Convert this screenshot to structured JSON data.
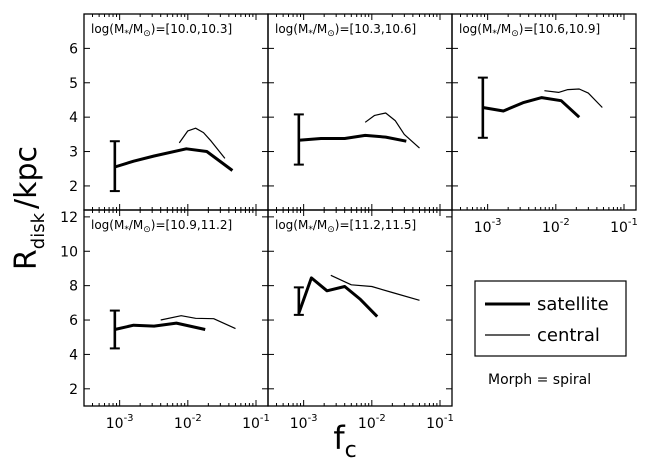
{
  "chart_data": {
    "type": "line",
    "xlabel_main": "f",
    "xlabel_sub": "c",
    "ylabel_main": "R",
    "ylabel_sub": "disk",
    "ylabel_unit": "/kpc",
    "note": "Morph = spiral",
    "xscale": "log",
    "xlim": [
      0.0003,
      0.15
    ],
    "xticks": [
      {
        "value": 0.001,
        "base": "10",
        "exp": "-3"
      },
      {
        "value": 0.01,
        "base": "10",
        "exp": "-2"
      },
      {
        "value": 0.1,
        "base": "10",
        "exp": "-1"
      }
    ],
    "top_row": {
      "ylim": [
        1.3,
        7.0
      ],
      "yticks": [
        2,
        3,
        4,
        5,
        6
      ]
    },
    "bottom_row": {
      "ylim": [
        1.0,
        12.4
      ],
      "yticks": [
        2,
        4,
        6,
        8,
        10,
        12
      ]
    },
    "legend": [
      {
        "name": "satellite",
        "style": "thick"
      },
      {
        "name": "central",
        "style": "thin"
      }
    ],
    "panels": [
      {
        "label": "log(M",
        "label_range": "=[10.0,10.3]",
        "row": 0,
        "col": 0,
        "errorbar": {
          "x": 0.00085,
          "low": 1.85,
          "high": 3.3
        },
        "satellite": {
          "x": [
            0.00085,
            0.0016,
            0.0032,
            0.0095,
            0.019,
            0.045
          ],
          "y": [
            2.55,
            2.72,
            2.87,
            3.08,
            3.0,
            2.45
          ]
        },
        "central": {
          "x": [
            0.0075,
            0.01,
            0.013,
            0.017,
            0.022,
            0.035
          ],
          "y": [
            3.25,
            3.6,
            3.68,
            3.55,
            3.3,
            2.8
          ]
        }
      },
      {
        "label": "log(M",
        "label_range": "=[10.3,10.6]",
        "row": 0,
        "col": 1,
        "errorbar": {
          "x": 0.00085,
          "low": 2.62,
          "high": 4.08
        },
        "satellite": {
          "x": [
            0.00085,
            0.0018,
            0.004,
            0.008,
            0.016,
            0.032
          ],
          "y": [
            3.33,
            3.38,
            3.38,
            3.47,
            3.42,
            3.3
          ]
        },
        "central": {
          "x": [
            0.008,
            0.011,
            0.016,
            0.022,
            0.03,
            0.05
          ],
          "y": [
            3.85,
            4.05,
            4.12,
            3.9,
            3.5,
            3.1
          ]
        }
      },
      {
        "label": "log(M",
        "label_range": "=[10.6,10.9]",
        "row": 0,
        "col": 2,
        "errorbar": {
          "x": 0.00085,
          "low": 3.4,
          "high": 5.15
        },
        "satellite": {
          "x": [
            0.00085,
            0.0017,
            0.0033,
            0.0062,
            0.012,
            0.022
          ],
          "y": [
            4.28,
            4.18,
            4.42,
            4.57,
            4.48,
            4.0
          ]
        },
        "central": {
          "x": [
            0.0068,
            0.011,
            0.015,
            0.022,
            0.03,
            0.048
          ],
          "y": [
            4.77,
            4.72,
            4.8,
            4.82,
            4.7,
            4.28
          ]
        }
      },
      {
        "label": "log(M",
        "label_range": "=[10.9,11.2]",
        "row": 1,
        "col": 0,
        "errorbar": {
          "x": 0.00085,
          "low": 4.35,
          "high": 6.55
        },
        "satellite": {
          "x": [
            0.00085,
            0.0016,
            0.0032,
            0.0068,
            0.018
          ],
          "y": [
            5.45,
            5.7,
            5.65,
            5.82,
            5.45
          ]
        },
        "central": {
          "x": [
            0.004,
            0.008,
            0.013,
            0.024,
            0.05
          ],
          "y": [
            6.0,
            6.25,
            6.1,
            6.08,
            5.5
          ]
        }
      },
      {
        "label": "log(M",
        "label_range": "=[11.2,11.5]",
        "row": 1,
        "col": 1,
        "errorbar": {
          "x": 0.00085,
          "low": 6.3,
          "high": 7.9
        },
        "satellite": {
          "x": [
            0.00085,
            0.0013,
            0.0022,
            0.004,
            0.0068,
            0.012
          ],
          "y": [
            6.4,
            8.45,
            7.7,
            7.95,
            7.2,
            6.2
          ]
        },
        "central": {
          "x": [
            0.0025,
            0.005,
            0.01,
            0.02,
            0.05
          ],
          "y": [
            8.6,
            8.05,
            7.95,
            7.6,
            7.15
          ]
        }
      }
    ]
  }
}
